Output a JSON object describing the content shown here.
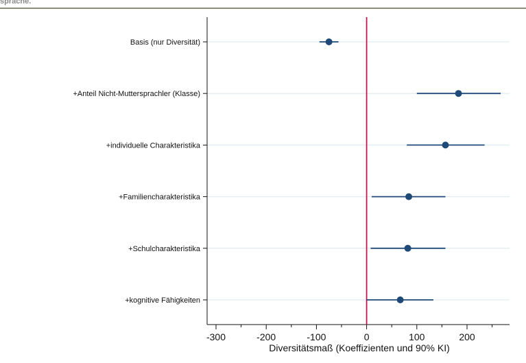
{
  "header": {
    "fragment": "sprache."
  },
  "chart_data": {
    "type": "scatter",
    "orientation": "horizontal",
    "xlabel": "Diversitätsmaß (Koeffizienten und 90% KI)",
    "xlim": [
      -320,
      285
    ],
    "xticks": [
      -300,
      -200,
      -100,
      0,
      100,
      200
    ],
    "minor_xticks": [
      -250,
      -150,
      -50,
      50,
      150,
      250
    ],
    "reference_line": {
      "x": 0,
      "color": "#c8174f"
    },
    "marker_color": "#1f4a78",
    "grid": "horizontal",
    "categories": [
      "Basis (nur Diversität)",
      "+Anteil Nicht-Muttersprachler (Klasse)",
      "+individuelle Charakteristika",
      "+Familiencharakteristika",
      "+Schulcharakteristika",
      "+kognitive Fähigkeiten"
    ],
    "estimates": [
      -75,
      183,
      157,
      84,
      82,
      67
    ],
    "ci_lower": [
      -94,
      100,
      80,
      10,
      8,
      0
    ],
    "ci_upper": [
      -56,
      267,
      235,
      157,
      157,
      133
    ]
  }
}
